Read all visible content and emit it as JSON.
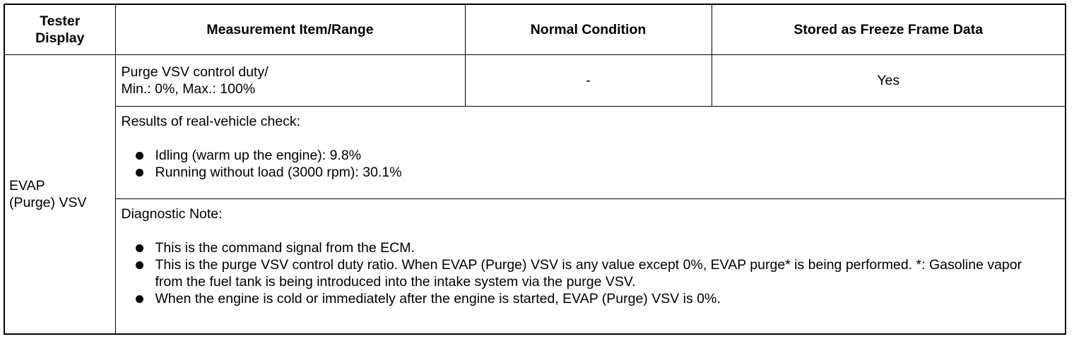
{
  "table": {
    "headers": [
      [
        "Tester",
        "Display"
      ],
      "Measurement Item/Range",
      "Normal Condition",
      "Stored as Freeze Frame Data"
    ],
    "tester_display": [
      "EVAP",
      "(Purge) VSV"
    ],
    "measurement_item": [
      "Purge VSV control duty/",
      "Min.: 0%, Max.: 100%"
    ],
    "normal_condition": "-",
    "freeze_frame": "Yes",
    "results": {
      "title": "Results of real-vehicle check:",
      "items": [
        "Idling (warm up the engine): 9.8%",
        "Running without load (3000 rpm): 30.1%"
      ]
    },
    "diagnostic_note": {
      "title": "Diagnostic Note:",
      "items": [
        "This is the command signal from the ECM.",
        "This is the purge VSV control duty ratio. When EVAP (Purge) VSV is any value except 0%, EVAP purge* is being performed. *: Gasoline vapor from the fuel tank is being introduced into the intake system via the purge VSV.",
        "When the engine is cold or immediately after the engine is started, EVAP (Purge) VSV is 0%."
      ]
    }
  }
}
